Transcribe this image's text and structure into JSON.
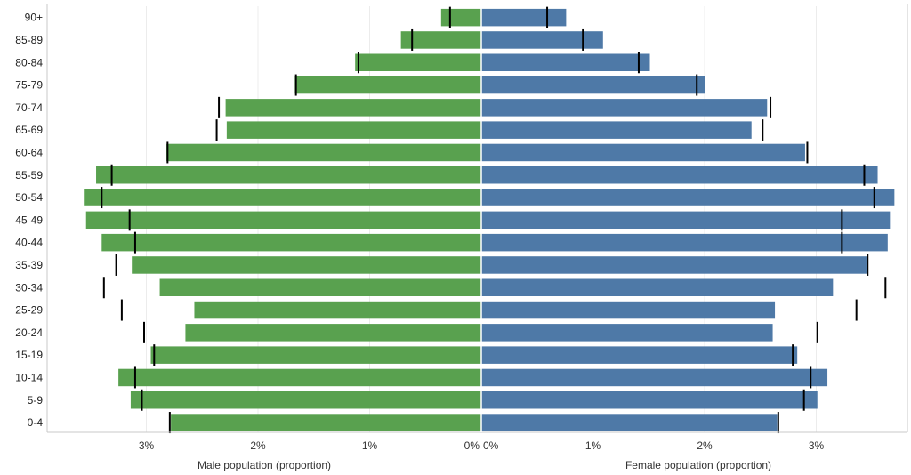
{
  "chart_data": {
    "type": "bar",
    "subtype": "population-pyramid",
    "colors": {
      "male": "#59a14f",
      "female": "#4e79a7",
      "reference": "#000000",
      "grid": "#ececec",
      "axis": "#c8c8c8"
    },
    "categories": [
      "90+",
      "85-89",
      "80-84",
      "75-79",
      "70-74",
      "65-69",
      "60-64",
      "55-59",
      "50-54",
      "45-49",
      "40-44",
      "35-39",
      "30-34",
      "25-29",
      "20-24",
      "15-19",
      "10-14",
      "5-9",
      "0-4"
    ],
    "series": [
      {
        "name": "Male population (proportion)",
        "values": [
          0.36,
          0.72,
          1.13,
          1.67,
          2.29,
          2.28,
          2.82,
          3.45,
          3.56,
          3.54,
          3.4,
          3.13,
          2.88,
          2.57,
          2.65,
          2.96,
          3.25,
          3.14,
          2.78
        ],
        "reference": [
          0.28,
          0.62,
          1.1,
          1.66,
          2.35,
          2.37,
          2.81,
          3.31,
          3.4,
          3.15,
          3.1,
          3.27,
          3.38,
          3.22,
          3.02,
          2.93,
          3.1,
          3.04,
          2.79
        ]
      },
      {
        "name": "Female population (proportion)",
        "values": [
          0.76,
          1.09,
          1.51,
          2.0,
          2.56,
          2.42,
          2.9,
          3.55,
          3.7,
          3.66,
          3.64,
          3.45,
          3.15,
          2.63,
          2.61,
          2.83,
          3.1,
          3.01,
          2.65
        ],
        "reference": [
          0.59,
          0.91,
          1.41,
          1.93,
          2.59,
          2.52,
          2.92,
          3.43,
          3.52,
          3.23,
          3.23,
          3.46,
          3.62,
          3.36,
          3.01,
          2.79,
          2.95,
          2.89,
          2.66
        ]
      }
    ],
    "male_axis": {
      "label": "Male population (proportion)",
      "ticks": [
        "3%",
        "2%",
        "1%",
        "0%"
      ],
      "tick_values": [
        3,
        2,
        1,
        0
      ]
    },
    "female_axis": {
      "label": "Female population (proportion)",
      "ticks": [
        "0%",
        "1%",
        "2%",
        "3%"
      ],
      "tick_values": [
        0,
        1,
        2,
        3
      ]
    },
    "grid": true
  }
}
